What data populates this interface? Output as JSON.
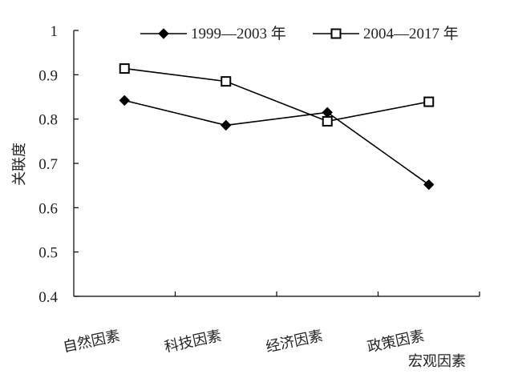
{
  "chart_data": {
    "type": "line",
    "categories": [
      "自然因素",
      "科技因素",
      "经济因素",
      "政策因素"
    ],
    "xlabel": "宏观因素",
    "ylabel": "关联度",
    "ylim": [
      0.4,
      1.0
    ],
    "yticks": [
      "0.4",
      "0.5",
      "0.6",
      "0.7",
      "0.8",
      "0.9",
      "1"
    ],
    "grid": false,
    "legend": "top-right",
    "series": [
      {
        "name": "1999—2003 年",
        "marker": "diamond-filled",
        "color": "#000000",
        "values": [
          0.842,
          0.786,
          0.815,
          0.652
        ]
      },
      {
        "name": "2004—2017 年",
        "marker": "square-open",
        "color": "#000000",
        "values": [
          0.914,
          0.885,
          0.795,
          0.839
        ]
      }
    ]
  }
}
